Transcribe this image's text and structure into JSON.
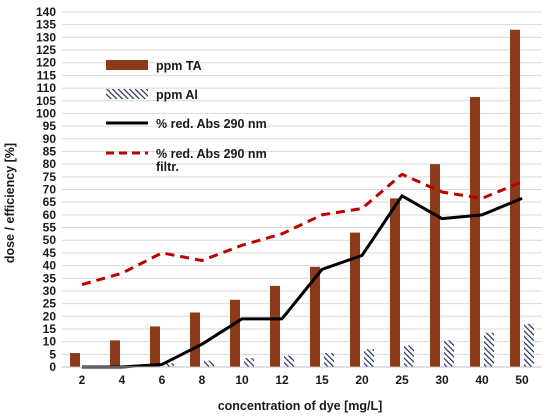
{
  "chart_data": {
    "type": "bar",
    "title": "",
    "xlabel": "concentration of dye  [mg/L]",
    "ylabel": "dose /  efficiency [%]",
    "ylim": [
      0,
      140
    ],
    "ytick_step": 5,
    "grid": "horizontal",
    "legend_position": "top-left",
    "categories": [
      "2",
      "4",
      "6",
      "8",
      "10",
      "12",
      "15",
      "20",
      "25",
      "30",
      "40",
      "50"
    ],
    "series": [
      {
        "name": "ppm TA",
        "kind": "bar",
        "color": "#8B3A1A",
        "values": [
          5.5,
          10.5,
          16,
          21.5,
          26.5,
          32,
          39.5,
          53,
          66.5,
          80,
          106.5,
          133
        ]
      },
      {
        "name": "ppm Al",
        "kind": "bar-hatched",
        "color": "#1F2F5A",
        "values": [
          0.5,
          0.8,
          1.5,
          2.5,
          3.5,
          4.5,
          5.5,
          7,
          8.5,
          10.5,
          13.5,
          17
        ]
      },
      {
        "name": "% red. Abs 290 nm",
        "kind": "line",
        "color": "#000000",
        "values": [
          0,
          0,
          1,
          9,
          19,
          19,
          38.5,
          44,
          67.5,
          58.5,
          60,
          66.5
        ]
      },
      {
        "name": "% red. Abs 290 nm",
        "name_line2": "filtr.",
        "kind": "line-dashed",
        "color": "#C00000",
        "values": [
          32.5,
          37,
          45,
          42,
          48,
          52.5,
          60,
          62.5,
          76,
          69,
          66.5,
          73
        ]
      }
    ]
  }
}
